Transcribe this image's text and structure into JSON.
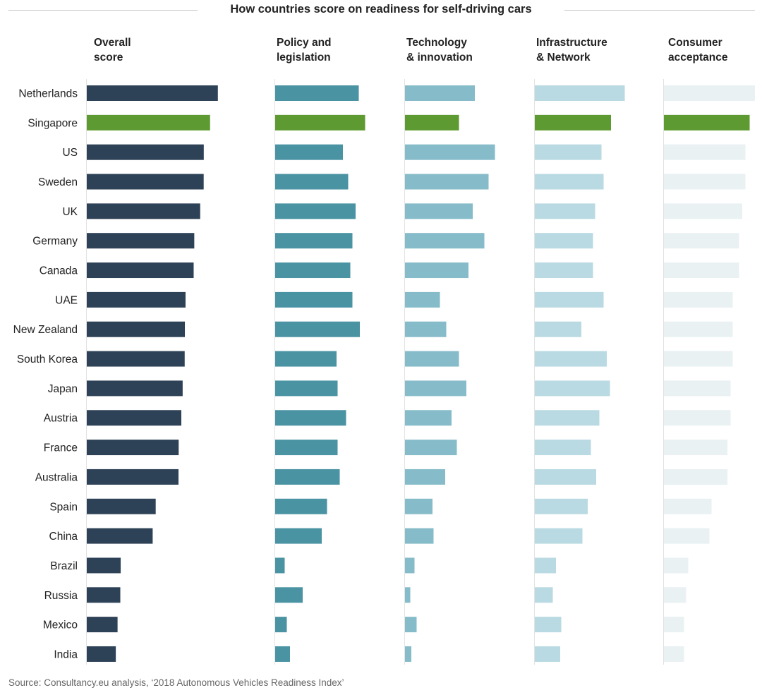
{
  "chart_data": {
    "type": "bar",
    "orientation": "horizontal",
    "title": "How countries score on readiness for self-driving cars",
    "source": "Source: Consultancy.eu analysis, ‘2018 Autonomous Vehicles Readiness Index’",
    "categories": [
      "Netherlands",
      "Singapore",
      "US",
      "Sweden",
      "UK",
      "Germany",
      "Canada",
      "UAE",
      "New Zealand",
      "South Korea",
      "Japan",
      "Austria",
      "France",
      "Australia",
      "Spain",
      "China",
      "Brazil",
      "Russia",
      "Mexico",
      "India"
    ],
    "highlight": "Singapore",
    "series": [
      {
        "name": "Overall\nscore",
        "lines": [
          "Overall",
          "score"
        ],
        "color": "#2e4257",
        "values": [
          27.73,
          26.08,
          24.75,
          24.73,
          23.99,
          22.74,
          22.61,
          20.89,
          20.75,
          20.71,
          20.28,
          20.0,
          19.44,
          19.4,
          14.58,
          13.94,
          7.17,
          7.09,
          6.51,
          6.14
        ],
        "xlim": [
          0,
          30
        ]
      },
      {
        "name": "Policy and legislation",
        "lines": [
          "Policy and",
          "legislation"
        ],
        "color": "#4a93a3",
        "values": [
          7.9,
          8.5,
          6.4,
          6.9,
          7.6,
          7.3,
          7.1,
          7.3,
          8.0,
          5.8,
          5.9,
          6.7,
          5.9,
          6.1,
          4.9,
          4.4,
          0.9,
          2.6,
          1.1,
          1.4
        ],
        "xlim": [
          0,
          9
        ]
      },
      {
        "name": "Technology & innovation",
        "lines": [
          "Technology",
          "& innovation"
        ],
        "color": "#86bcc9",
        "values": [
          6.6,
          5.1,
          8.5,
          7.9,
          6.4,
          7.5,
          6.0,
          3.3,
          3.9,
          5.1,
          5.8,
          4.4,
          4.9,
          3.8,
          2.6,
          2.7,
          0.9,
          0.5,
          1.1,
          0.6
        ],
        "xlim": [
          0,
          9
        ]
      },
      {
        "name": "Infrastructure & Network",
        "lines": [
          "Infrastructure",
          "& Network"
        ],
        "color": "#b9dae2",
        "values": [
          8.5,
          7.2,
          6.3,
          6.5,
          5.7,
          5.5,
          5.5,
          6.5,
          4.4,
          6.8,
          7.1,
          6.1,
          5.3,
          5.8,
          5.0,
          4.5,
          2.0,
          1.7,
          2.5,
          2.4
        ],
        "xlim": [
          0,
          9
        ]
      },
      {
        "name": "Consumer acceptance",
        "lines": [
          "Consumer",
          "acceptance"
        ],
        "color": "#e9f1f3",
        "values": [
          8.6,
          8.1,
          7.7,
          7.7,
          7.4,
          7.1,
          7.1,
          6.5,
          6.5,
          6.5,
          6.3,
          6.3,
          6.0,
          6.0,
          4.5,
          4.3,
          2.3,
          2.1,
          1.9,
          1.9
        ],
        "xlim": [
          0,
          9
        ]
      }
    ],
    "highlight_color": "#5e9a32",
    "grid": false,
    "legend": "none"
  }
}
